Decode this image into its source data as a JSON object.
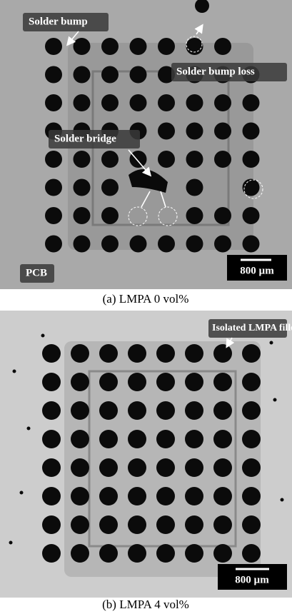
{
  "panels": [
    {
      "labels": {
        "solder_bump": "Solder bump",
        "solder_bump_loss": "Solder bump loss",
        "solder_bridge": "Solder bridge",
        "pcb": "PCB"
      },
      "scale_bar": "800 µm",
      "caption": "(a) LMPA 0 vol%"
    },
    {
      "labels": {
        "isolated_filler": "Isolated LMPA filler"
      },
      "scale_bar": "800 µm",
      "caption": "(b) LMPA 4 vol%"
    }
  ]
}
